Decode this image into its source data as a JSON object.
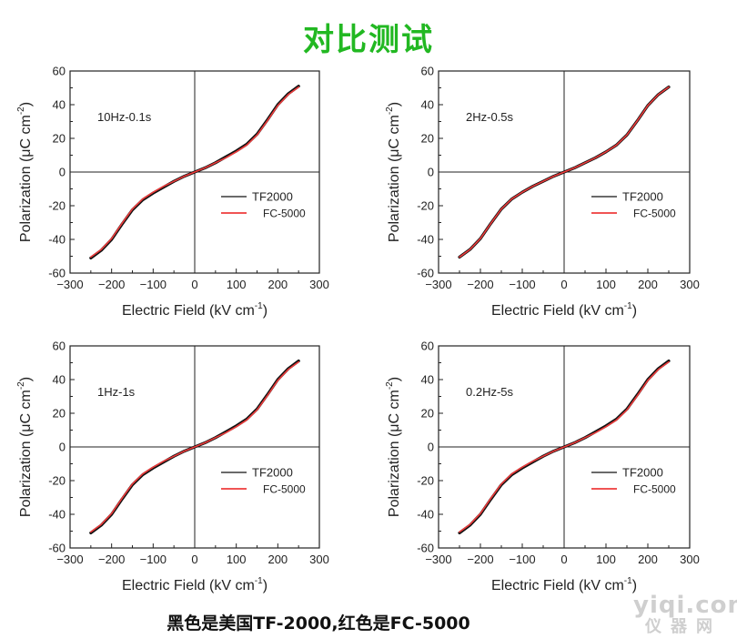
{
  "page": {
    "title": "对比测试",
    "footer_note": "黑色是美国TF-2000,红色是FC-5000",
    "watermark_top": "yiqi.com",
    "watermark_bottom": "仪器网"
  },
  "colors": {
    "tf2000": "#111111",
    "fc5000": "#ee3b3b",
    "title": "#22b822"
  },
  "chart_data": [
    {
      "type": "line",
      "annotation": "10Hz-0.1s",
      "xlabel": "Electric Field (kV cm",
      "xlabel_sup": "-1",
      "xlabel_tail": ")",
      "ylabel": "Polarization (μC cm",
      "ylabel_sup": "-2",
      "ylabel_tail": ")",
      "xlim": [
        -300,
        300
      ],
      "ylim": [
        -60,
        60
      ],
      "x_ticks": [
        "−300",
        "−200",
        "−100",
        "0",
        "100",
        "200",
        "300"
      ],
      "y_ticks": [
        "60",
        "40",
        "20",
        "0",
        "-20",
        "-40",
        "-60"
      ],
      "legend": [
        "TF2000",
        "FC-5000"
      ],
      "series": [
        {
          "name": "TF2000",
          "x": [
            -250,
            -225,
            -200,
            -175,
            -150,
            -125,
            -100,
            -75,
            -50,
            -25,
            0,
            25,
            50,
            75,
            100,
            125,
            150,
            175,
            200,
            225,
            250
          ],
          "y": [
            -51,
            -46.5,
            -40,
            -31,
            -22.5,
            -16.5,
            -12.5,
            -9,
            -5.5,
            -2.5,
            0,
            2.5,
            5.5,
            9,
            12.5,
            16.5,
            22.5,
            31,
            40,
            46.5,
            51
          ]
        },
        {
          "name": "FC-5000",
          "x": [
            -250,
            -225,
            -200,
            -175,
            -150,
            -125,
            -100,
            -75,
            -50,
            -25,
            0,
            25,
            50,
            75,
            100,
            125,
            150,
            175,
            200,
            225,
            250
          ],
          "y": [
            -50.5,
            -46,
            -39.5,
            -30.5,
            -22,
            -16,
            -12,
            -8.5,
            -5.5,
            -2.5,
            0,
            2.5,
            5.5,
            8.5,
            12,
            16,
            22,
            30.5,
            39.5,
            46,
            50.5
          ]
        }
      ]
    },
    {
      "type": "line",
      "annotation": "2Hz-0.5s",
      "xlabel": "Electric Field (kV cm",
      "xlabel_sup": "-1",
      "xlabel_tail": ")",
      "ylabel": "Polarization (μC cm",
      "ylabel_sup": "-2",
      "ylabel_tail": ")",
      "xlim": [
        -300,
        300
      ],
      "ylim": [
        -60,
        60
      ],
      "x_ticks": [
        "−300",
        "−200",
        "−100",
        "0",
        "100",
        "200",
        "300"
      ],
      "y_ticks": [
        "60",
        "40",
        "20",
        "0",
        "-20",
        "-40",
        "-60"
      ],
      "legend": [
        "TF2000",
        "FC-5000"
      ],
      "series": [
        {
          "name": "TF2000",
          "x": [
            -250,
            -225,
            -200,
            -175,
            -150,
            -125,
            -100,
            -75,
            -50,
            -25,
            0,
            25,
            50,
            75,
            100,
            125,
            150,
            175,
            200,
            225,
            250
          ],
          "y": [
            -50.5,
            -46,
            -39.5,
            -30.5,
            -22,
            -16,
            -12,
            -8.5,
            -5.5,
            -2.5,
            0,
            2.5,
            5.5,
            8.5,
            12,
            16,
            22,
            30.5,
            39.5,
            46,
            50.5
          ]
        },
        {
          "name": "FC-5000",
          "x": [
            -250,
            -225,
            -200,
            -175,
            -150,
            -125,
            -100,
            -75,
            -50,
            -25,
            0,
            25,
            50,
            75,
            100,
            125,
            150,
            175,
            200,
            225,
            250
          ],
          "y": [
            -50.5,
            -46,
            -39.5,
            -30.5,
            -22,
            -16,
            -12,
            -8.5,
            -5.5,
            -2.5,
            0,
            2.5,
            5.5,
            8.5,
            12,
            16,
            22,
            30.5,
            39.5,
            46,
            50.5
          ]
        }
      ]
    },
    {
      "type": "line",
      "annotation": "1Hz-1s",
      "xlabel": "Electric Field (kV cm",
      "xlabel_sup": "-1",
      "xlabel_tail": ")",
      "ylabel": "Polarization (μC cm",
      "ylabel_sup": "-2",
      "ylabel_tail": ")",
      "xlim": [
        -300,
        300
      ],
      "ylim": [
        -60,
        60
      ],
      "x_ticks": [
        "−300",
        "−200",
        "−100",
        "0",
        "100",
        "200",
        "300"
      ],
      "y_ticks": [
        "60",
        "40",
        "20",
        "0",
        "-20",
        "-40",
        "-60"
      ],
      "legend": [
        "TF2000",
        "FC-5000"
      ],
      "series": [
        {
          "name": "TF2000",
          "x": [
            -250,
            -225,
            -200,
            -175,
            -150,
            -125,
            -100,
            -75,
            -50,
            -25,
            0,
            25,
            50,
            75,
            100,
            125,
            150,
            175,
            200,
            225,
            250
          ],
          "y": [
            -51,
            -46.5,
            -40,
            -31,
            -22.5,
            -16.5,
            -12.5,
            -9,
            -5.5,
            -2.5,
            0,
            2.5,
            5.5,
            9,
            12.5,
            16.5,
            22.5,
            31,
            40,
            46.5,
            51
          ]
        },
        {
          "name": "FC-5000",
          "x": [
            -250,
            -225,
            -200,
            -175,
            -150,
            -125,
            -100,
            -75,
            -50,
            -25,
            0,
            25,
            50,
            75,
            100,
            125,
            150,
            175,
            200,
            225,
            250
          ],
          "y": [
            -50.5,
            -46,
            -39.5,
            -30.5,
            -22,
            -16,
            -12,
            -8.5,
            -5.5,
            -2.5,
            0,
            2.5,
            5.5,
            8.5,
            12,
            16,
            22,
            30.5,
            39.5,
            46,
            50.5
          ]
        }
      ]
    },
    {
      "type": "line",
      "annotation": "0.2Hz-5s",
      "xlabel": "Electric Field (kV cm",
      "xlabel_sup": "-1",
      "xlabel_tail": ")",
      "ylabel": "Polarization (μC cm",
      "ylabel_sup": "-2",
      "ylabel_tail": ")",
      "xlim": [
        -300,
        300
      ],
      "ylim": [
        -60,
        60
      ],
      "x_ticks": [
        "−300",
        "−200",
        "−100",
        "0",
        "100",
        "200",
        "300"
      ],
      "y_ticks": [
        "60",
        "40",
        "20",
        "0",
        "-20",
        "-40",
        "-60"
      ],
      "legend": [
        "TF2000",
        "FC-5000"
      ],
      "series": [
        {
          "name": "TF2000",
          "x": [
            -250,
            -225,
            -200,
            -175,
            -150,
            -125,
            -100,
            -75,
            -50,
            -25,
            0,
            25,
            50,
            75,
            100,
            125,
            150,
            175,
            200,
            225,
            250
          ],
          "y": [
            -51,
            -46.5,
            -40,
            -31,
            -22.5,
            -16.5,
            -12.5,
            -9,
            -5.5,
            -2.5,
            0,
            2.5,
            5.5,
            9,
            12.5,
            16.5,
            22.5,
            31,
            40,
            46.5,
            51
          ]
        },
        {
          "name": "FC-5000",
          "x": [
            -250,
            -225,
            -200,
            -175,
            -150,
            -125,
            -100,
            -75,
            -50,
            -25,
            0,
            25,
            50,
            75,
            100,
            125,
            150,
            175,
            200,
            225,
            250
          ],
          "y": [
            -50.5,
            -46,
            -39.5,
            -30.5,
            -22,
            -16,
            -12,
            -8.5,
            -5.5,
            -2.5,
            0,
            2.5,
            5.5,
            8.5,
            12,
            16,
            22,
            30.5,
            39.5,
            46,
            50.5
          ]
        }
      ]
    }
  ]
}
